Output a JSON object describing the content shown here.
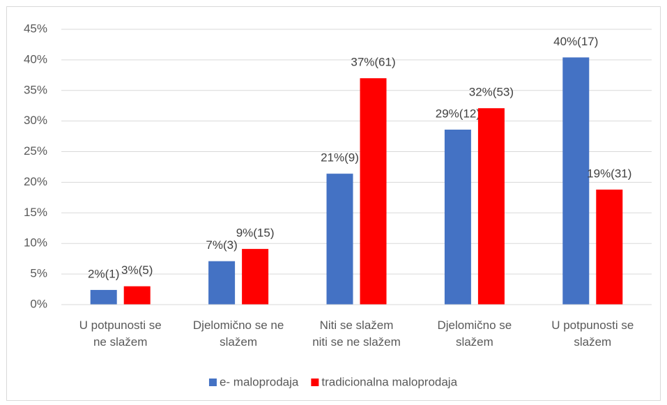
{
  "chart_data": {
    "type": "bar",
    "categories": [
      "U potpunosti se\nne slažem",
      "Djelomično se ne\nslažem",
      "Niti se slažem\nniti se ne slažem",
      "Djelomično se\nslažem",
      "U potpunosti se\nslažem"
    ],
    "series": [
      {
        "name": "e- maloprodaja",
        "color": "#4472c4",
        "values": [
          2.4,
          7.1,
          21.4,
          28.6,
          40.4
        ],
        "value_labels": [
          "2%(1)",
          "7%(3)",
          "21%(9)",
          "29%(12)",
          "40%(17)"
        ]
      },
      {
        "name": "tradicionalna maloprodaja",
        "color": "#ff0000",
        "values": [
          3.0,
          9.1,
          37.0,
          32.1,
          18.8
        ],
        "value_labels": [
          "3%(5)",
          "9%(15)",
          "37%(61)",
          "32%(53)",
          "19%(31)"
        ]
      }
    ],
    "ylim": [
      0,
      45
    ],
    "yticks": [
      {
        "value": 0,
        "label": "0%"
      },
      {
        "value": 5,
        "label": "5%"
      },
      {
        "value": 10,
        "label": "10%"
      },
      {
        "value": 15,
        "label": "15%"
      },
      {
        "value": 20,
        "label": "20%"
      },
      {
        "value": 25,
        "label": "25%"
      },
      {
        "value": 30,
        "label": "30%"
      },
      {
        "value": 35,
        "label": "35%"
      },
      {
        "value": 40,
        "label": "40%"
      },
      {
        "value": 45,
        "label": "45%"
      }
    ],
    "grid": true,
    "legend": "bottom"
  }
}
